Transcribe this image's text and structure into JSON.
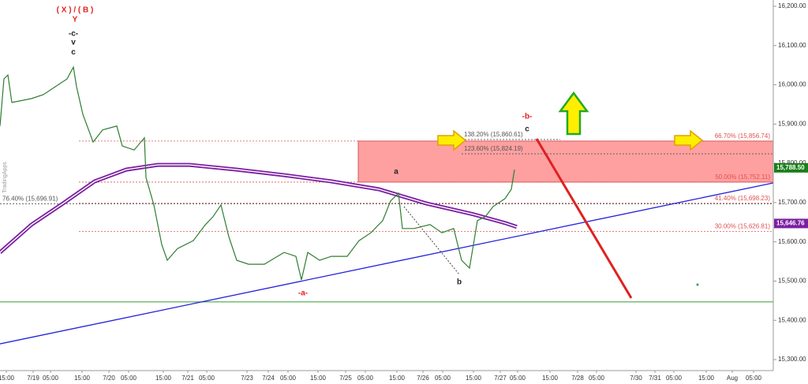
{
  "chart_data": {
    "type": "line",
    "watermark": "TradingApps",
    "xlim": [
      0,
      245
    ],
    "ylim": [
      15276,
      16216
    ],
    "xticks": [
      {
        "value": 2,
        "label": "15:00"
      },
      {
        "value": 10.5,
        "label": "7/19"
      },
      {
        "value": 16,
        "label": "05:00"
      },
      {
        "value": 26,
        "label": "15:00"
      },
      {
        "value": 34.5,
        "label": "7/20"
      },
      {
        "value": 40.75,
        "label": "05:00"
      },
      {
        "value": 51.75,
        "label": "15:00"
      },
      {
        "value": 59.5,
        "label": "7/21"
      },
      {
        "value": 65.5,
        "label": "05:00"
      },
      {
        "value": 78.25,
        "label": "7/23"
      },
      {
        "value": 85,
        "label": "7/24"
      },
      {
        "value": 91.25,
        "label": "05:00"
      },
      {
        "value": 100.75,
        "label": "15:00"
      },
      {
        "value": 109.5,
        "label": "7/25"
      },
      {
        "value": 115.75,
        "label": "05:00"
      },
      {
        "value": 125.75,
        "label": "15:00"
      },
      {
        "value": 134,
        "label": "7/26"
      },
      {
        "value": 140.25,
        "label": "05:00"
      },
      {
        "value": 150,
        "label": "15:00"
      },
      {
        "value": 158.5,
        "label": "7/27"
      },
      {
        "value": 164,
        "label": "05:00"
      },
      {
        "value": 174.25,
        "label": "15:00"
      },
      {
        "value": 183,
        "label": "7/28"
      },
      {
        "value": 189,
        "label": "05:00"
      },
      {
        "value": 201.5,
        "label": "7/30"
      },
      {
        "value": 207.5,
        "label": "7/31"
      },
      {
        "value": 213.5,
        "label": "05:00"
      },
      {
        "value": 223.75,
        "label": "15:00"
      },
      {
        "value": 232,
        "label": "Aug"
      },
      {
        "value": 238.75,
        "label": "05:00"
      }
    ],
    "yticks": [
      {
        "value": 15300,
        "label": "15,300.00"
      },
      {
        "value": 15400,
        "label": "15,400.00"
      },
      {
        "value": 15500,
        "label": "15,500.00"
      },
      {
        "value": 15600,
        "label": "15,600.00"
      },
      {
        "value": 15700,
        "label": "15,700.00"
      },
      {
        "value": 15800,
        "label": "15,800.00"
      },
      {
        "value": 15900,
        "label": "15,900.00"
      },
      {
        "value": 16000,
        "label": "16,000.00"
      },
      {
        "value": 16100,
        "label": "16,100.00"
      },
      {
        "value": 16200,
        "label": "16,200.00"
      }
    ],
    "series": [
      {
        "color": "#2e7d32",
        "x": [
          0,
          1.25,
          2.5,
          3.75,
          6.25,
          10,
          13.75,
          17.5,
          21.25,
          23.25,
          24.25,
          26.25,
          29.5,
          32.5,
          37,
          38.75,
          42.5,
          45.75,
          46.25,
          48.75,
          51.25,
          53,
          56.25,
          61.25,
          65,
          67.5,
          70,
          72.5,
          75,
          78.75,
          83.75,
          90,
          93.75,
          95.5,
          97.5,
          101.25,
          105,
          110,
          113.75,
          117.5,
          121.25,
          123.75,
          126.25,
          127.5,
          131.25,
          136.25,
          140,
          143.75,
          146.25,
          148.75,
          150,
          151.25,
          153.75,
          156.25,
          160,
          162,
          163
        ],
        "values": [
          15895,
          16015,
          16025,
          15955,
          15959,
          15965,
          15975,
          15995,
          16015,
          16045,
          15995,
          15925,
          15854,
          15885,
          15895,
          15844,
          15834,
          15865,
          15764,
          15694,
          15593,
          15553,
          15583,
          15603,
          15643,
          15664,
          15694,
          15613,
          15553,
          15543,
          15543,
          15573,
          15563,
          15503,
          15573,
          15553,
          15563,
          15563,
          15603,
          15623,
          15654,
          15704,
          15724,
          15634,
          15634,
          15644,
          15623,
          15634,
          15553,
          15533,
          15593,
          15654,
          15664,
          15690,
          15710,
          15734,
          15784
        ]
      }
    ],
    "moving_average": {
      "color": "#7b1fa2",
      "x": [
        0,
        10,
        20,
        30,
        40,
        50,
        60,
        75,
        90,
        105,
        120,
        135,
        150,
        160,
        163.75
      ],
      "values": [
        15573,
        15644,
        15698,
        15754,
        15784,
        15796,
        15796,
        15784,
        15770,
        15754,
        15734,
        15698,
        15670,
        15648,
        15638
      ]
    },
    "trendline": {
      "color": "#2222dd",
      "x": [
        0,
        245
      ],
      "values": [
        15340,
        15750
      ]
    },
    "support": {
      "color": "#2e9e2e",
      "value": 15447
    },
    "zone": {
      "color": "#ff8080",
      "x": [
        113.5,
        245
      ],
      "values": [
        15752.11,
        15856.74
      ]
    },
    "fib_levels": [
      {
        "label": "66.70% (15,856.74)",
        "value": 15856.74,
        "x": [
          25,
          245
        ],
        "color": "#e05050",
        "label_at": "end"
      },
      {
        "label": "50.00% (15,752.11)",
        "value": 15752.11,
        "x": [
          25,
          245
        ],
        "color": "#e05050",
        "label_at": "end"
      },
      {
        "label": "41.40% (15,698.23)",
        "value": 15698.23,
        "x": [
          25,
          245
        ],
        "color": "#e05050",
        "label_at": "end"
      },
      {
        "label": "30.00% (15,626.81)",
        "value": 15626.81,
        "x": [
          25,
          245
        ],
        "color": "#e05050",
        "label_at": "end"
      },
      {
        "label": "76.40% (15,696.91)",
        "value": 15696.91,
        "x": [
          0,
          245
        ],
        "color": "#555555",
        "label_at": "start"
      },
      {
        "label": "138.20% (15,860.61)",
        "value": 15860.61,
        "x": [
          146.25,
          177.5
        ],
        "color": "#555555",
        "label_at": "start"
      },
      {
        "label": "123.60% (15,824.19)",
        "value": 15824.19,
        "x": [
          146.25,
          245
        ],
        "color": "#555555",
        "label_at": "start"
      }
    ],
    "price_tags": [
      {
        "value": 15788.5,
        "label": "15,788.50",
        "color": "#1a7f1a"
      },
      {
        "value": 15646.76,
        "label": "15,646.76",
        "color": "#7b1fa2"
      }
    ],
    "wave_labels": [
      {
        "text": "( X ) / ( B )",
        "x": 23.75,
        "y": 16190,
        "color": "#e02020"
      },
      {
        "text": "Y",
        "x": 23.75,
        "y": 16166,
        "color": "#e02020"
      },
      {
        "text": "-c-",
        "x": 23.25,
        "y": 16130,
        "color": "#222222"
      },
      {
        "text": "v",
        "x": 23.25,
        "y": 16108,
        "color": "#222222"
      },
      {
        "text": "c",
        "x": 23.25,
        "y": 16083,
        "color": "#222222"
      },
      {
        "text": "a",
        "x": 125.5,
        "y": 15778,
        "color": "#222222"
      },
      {
        "text": "b",
        "x": 145.5,
        "y": 15497,
        "color": "#222222"
      },
      {
        "text": "-a-",
        "x": 96,
        "y": 15469,
        "color": "#e02020"
      },
      {
        "text": "-b-",
        "x": 167,
        "y": 15919,
        "color": "#e02020"
      },
      {
        "text": "c",
        "x": 167,
        "y": 15887,
        "color": "#222222"
      }
    ]
  }
}
